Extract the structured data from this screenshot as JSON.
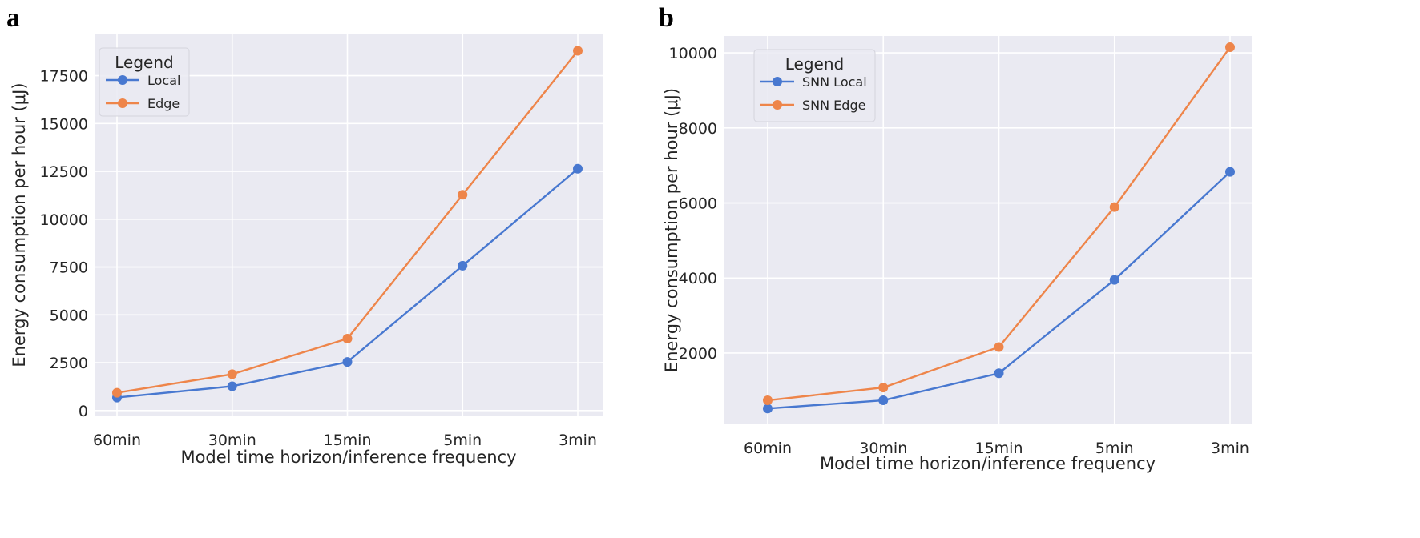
{
  "panels": [
    {
      "label": "a"
    },
    {
      "label": "b"
    }
  ],
  "colors": {
    "background": "#eaeaf2",
    "grid": "#ffffff",
    "local": "#4878d0",
    "edge": "#ee854a"
  },
  "chart_data": [
    {
      "type": "line",
      "title": "",
      "xlabel": "Model time horizon/inference frequency",
      "ylabel": "Energy consumption per hour (μJ)",
      "categories": [
        "60min",
        "30min",
        "15min",
        "5min",
        "3min"
      ],
      "yticks": [
        0,
        2500,
        5000,
        7500,
        10000,
        12500,
        15000,
        17500
      ],
      "ylim": [
        -300,
        19700
      ],
      "grid": true,
      "legend": {
        "title": "Legend",
        "placement": "top-left"
      },
      "series": [
        {
          "name": "Local",
          "color": "#4878d0",
          "values": [
            680,
            1270,
            2540,
            7570,
            12640
          ]
        },
        {
          "name": "Edge",
          "color": "#ee854a",
          "values": [
            930,
            1900,
            3760,
            11280,
            18800
          ]
        }
      ]
    },
    {
      "type": "line",
      "title": "",
      "xlabel": "Model time horizon/inference frequency",
      "ylabel": "Energy consumption per hour (μJ)",
      "categories": [
        "60min",
        "30min",
        "15min",
        "5min",
        "3min"
      ],
      "yticks": [
        2000,
        4000,
        6000,
        8000,
        10000
      ],
      "ylim": [
        100,
        10450
      ],
      "grid": true,
      "legend": {
        "title": "Legend",
        "placement": "top-left"
      },
      "series": [
        {
          "name": "SNN Local",
          "color": "#4878d0",
          "values": [
            520,
            740,
            1460,
            3950,
            6830
          ]
        },
        {
          "name": "SNN Edge",
          "color": "#ee854a",
          "values": [
            740,
            1080,
            2160,
            5890,
            10150
          ]
        }
      ]
    }
  ]
}
